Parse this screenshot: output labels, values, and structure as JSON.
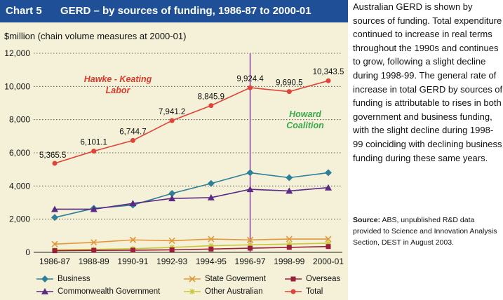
{
  "header": {
    "number": "Chart 5",
    "title": "GERD – by sources of funding, 1986-87 to 2000-01"
  },
  "description": "Australian GERD is shown by sources of funding. Total expenditure continued to increase in real terms throughout the 1990s and continues to grow, following a slight decline during 1998-99. The general rate of increase in total GERD by sources of funding is attributable to rises in both government and business funding, with the slight decline during 1998-99 coinciding with declining business funding during these same years.",
  "source": {
    "label": "Source:",
    "text": "ABS, unpublished R&D data provided to Science and Innovation Analysis Section, DEST in August 2003."
  },
  "colors": {
    "header_bg": "#1f4f96",
    "panel_bg": "#f5f1d8",
    "government_line": "#8a3fa8",
    "annotation": "#d93a2b",
    "coalition": "#3aa84a"
  },
  "chart_data": {
    "type": "line",
    "title": "GERD – by sources of funding, 1986-87 to 2000-01",
    "ylabel": "$million (chain volume measures at 2000-01)",
    "ylim": [
      0,
      12000
    ],
    "yticks": [
      "0",
      "2,000",
      "4,000",
      "6,000",
      "8,000",
      "10,000",
      "12,000"
    ],
    "ytick_values": [
      0,
      2000,
      4000,
      6000,
      8000,
      10000,
      12000
    ],
    "categories": [
      "1986-87",
      "1988-89",
      "1990-91",
      "1992-93",
      "1994-95",
      "1996-97",
      "1998-99",
      "2000-01"
    ],
    "gridlines": "dotted horizontal",
    "legend_position": "bottom",
    "series": [
      {
        "name": "Business",
        "color": "#2f7f99",
        "marker": "diamond",
        "values": [
          2100,
          2650,
          2850,
          3550,
          4150,
          4800,
          4500,
          4800
        ]
      },
      {
        "name": "Commonwealth Government",
        "color": "#5b2a84",
        "marker": "triangle",
        "values": [
          2600,
          2600,
          2950,
          3250,
          3300,
          3800,
          3700,
          3900
        ]
      },
      {
        "name": "State Goverment",
        "color": "#e0983a",
        "marker": "x",
        "values": [
          500,
          600,
          750,
          700,
          800,
          750,
          800,
          800
        ]
      },
      {
        "name": "Other Australian",
        "color": "#c8c83a",
        "marker": "star",
        "values": [
          150,
          180,
          220,
          300,
          400,
          450,
          500,
          550
        ]
      },
      {
        "name": "Overseas",
        "color": "#9b1e3a",
        "marker": "square",
        "values": [
          100,
          120,
          130,
          150,
          200,
          250,
          300,
          350
        ]
      },
      {
        "name": "Total",
        "color": "#e0433a",
        "marker": "circle",
        "values": [
          5365.5,
          6101.1,
          6744.7,
          7941.2,
          8845.9,
          9924.4,
          9690.5,
          10343.5
        ]
      }
    ],
    "data_labels": [
      "5,365.5",
      "6,101.1",
      "6,744.7",
      "7,941.2",
      "8,845.9",
      "9,924.4",
      "9,690.5",
      "10,343.5"
    ],
    "annotations": {
      "labor": [
        "Hawke - Keating",
        "Labor"
      ],
      "coalition": [
        "Howard",
        "Coalition"
      ],
      "change_of_government_category": "1996-97"
    }
  }
}
